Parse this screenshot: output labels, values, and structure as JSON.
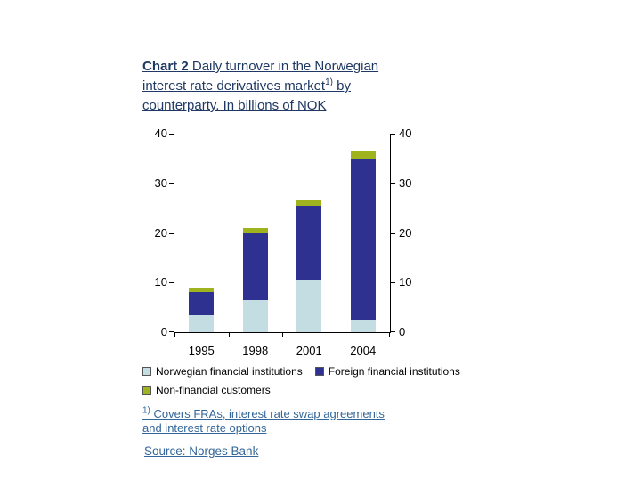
{
  "title": {
    "bold": "Chart 2",
    "line1_rest": " Daily turnover in the Norwegian",
    "line2": "interest rate derivatives market",
    "sup": "1)",
    "line2_rest": " by",
    "line3": "counterparty. In billions of NOK"
  },
  "chart_data": {
    "type": "bar",
    "stacked": true,
    "title": "Chart 2 Daily turnover in the Norwegian interest rate derivatives market 1) by counterparty. In billions of NOK",
    "categories": [
      "1995",
      "1998",
      "2001",
      "2004"
    ],
    "series": [
      {
        "name": "Norwegian financial institutions",
        "color": "#c3dde2",
        "values": [
          3.5,
          6.5,
          10.5,
          2.5
        ]
      },
      {
        "name": "Foreign financial institutions",
        "color": "#2f3191",
        "values": [
          4.5,
          13.5,
          15,
          32.5
        ]
      },
      {
        "name": "Non-financial customers",
        "color": "#9fb31f",
        "values": [
          1,
          1,
          1,
          1.5
        ]
      }
    ],
    "ylim": [
      0,
      40
    ],
    "yticks": [
      0,
      10,
      20,
      30,
      40
    ],
    "grid": false,
    "legend_position": "bottom"
  },
  "footnote": {
    "sup": "1)",
    "line1": "Covers FRAs, interest rate swap agreements",
    "line2": "and interest rate options"
  },
  "source": "Source: Norges Bank",
  "colors": {
    "title_text": "#1f3864",
    "footnote_text": "#336699",
    "axis": "#000000"
  }
}
